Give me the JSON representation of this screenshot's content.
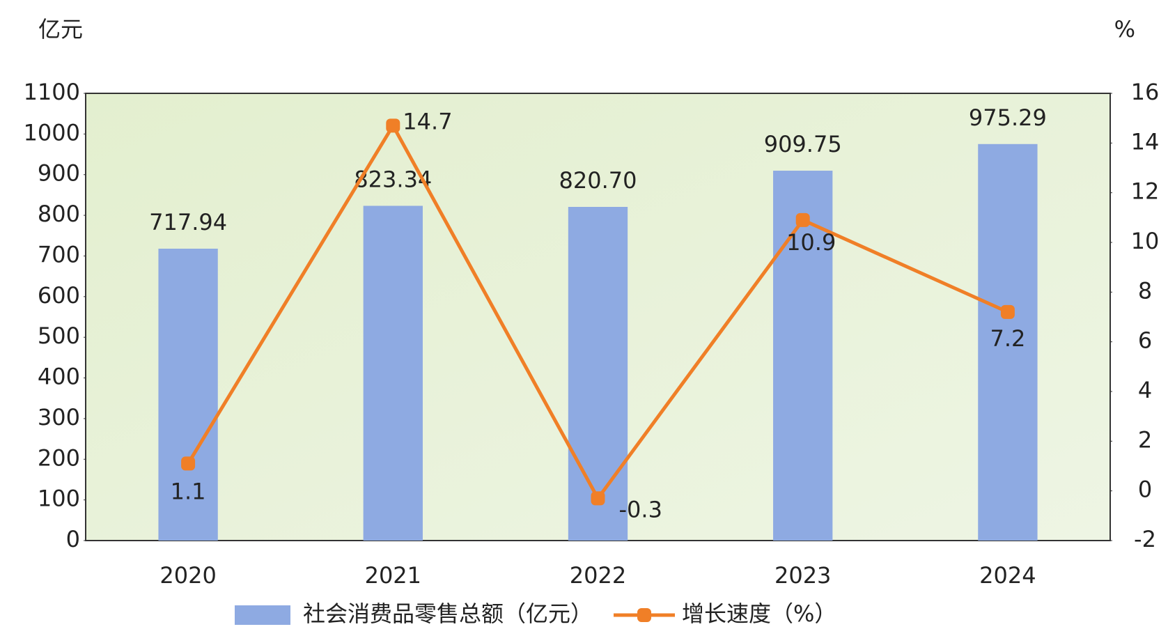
{
  "chart_data": {
    "type": "bar+line",
    "y_unit": "亿元",
    "y2_unit": "%",
    "categories": [
      "2020",
      "2021",
      "2022",
      "2023",
      "2024"
    ],
    "series": [
      {
        "name": "社会消费品零售总额（亿元）",
        "type": "bar",
        "color": "#8eaae2",
        "values": [
          717.94,
          823.34,
          820.7,
          909.75,
          975.29
        ],
        "value_labels": [
          "717.94",
          "823.34",
          "820.70",
          "909.75",
          "975.29"
        ]
      },
      {
        "name": "增长速度（%）",
        "type": "line",
        "axis": "y2",
        "color": "#f07f27",
        "values": [
          1.1,
          14.7,
          -0.3,
          10.9,
          7.2
        ]
      }
    ],
    "ylim": [
      0,
      1100
    ],
    "yticks": [
      0,
      100,
      200,
      300,
      400,
      500,
      600,
      700,
      800,
      900,
      1000,
      1100
    ],
    "y2lim": [
      -2,
      16
    ],
    "y2ticks": [
      -2,
      0,
      2,
      4,
      6,
      8,
      10,
      12,
      14,
      16
    ],
    "grid": false,
    "legend": "bottom"
  }
}
